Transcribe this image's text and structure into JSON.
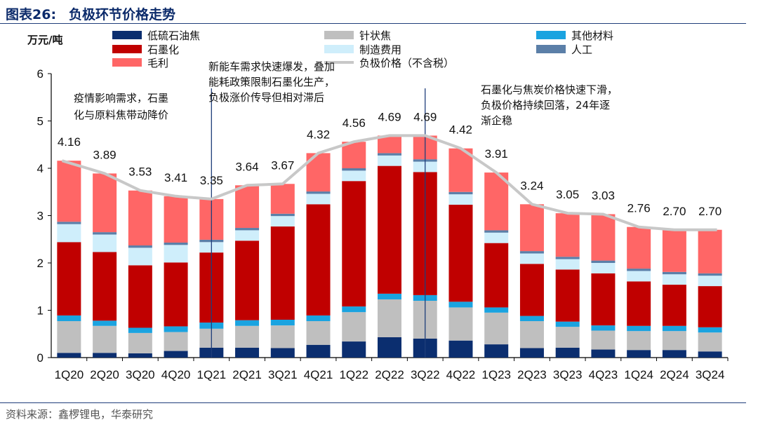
{
  "figure": {
    "label": "图表26:",
    "title": "负极环节价格走势",
    "source": "资料来源：鑫椤锂电，华泰研究"
  },
  "chart_data": {
    "type": "bar",
    "stacked": true,
    "title": "负极环节价格走势",
    "ylabel": "万元/吨",
    "ylim": [
      0,
      6
    ],
    "yticks": [
      0,
      1,
      2,
      3,
      4,
      5,
      6
    ],
    "categories": [
      "1Q20",
      "2Q20",
      "3Q20",
      "4Q20",
      "1Q21",
      "2Q21",
      "3Q21",
      "4Q21",
      "1Q22",
      "2Q22",
      "3Q22",
      "4Q22",
      "1Q23",
      "2Q23",
      "3Q23",
      "4Q23",
      "1Q24",
      "2Q24",
      "3Q24"
    ],
    "series": [
      {
        "name": "低硫石油焦",
        "color": "#0b2e6f",
        "values": [
          0.1,
          0.1,
          0.09,
          0.14,
          0.21,
          0.21,
          0.2,
          0.27,
          0.34,
          0.43,
          0.4,
          0.36,
          0.28,
          0.2,
          0.21,
          0.17,
          0.16,
          0.16,
          0.13
        ]
      },
      {
        "name": "针状焦",
        "color": "#bfbfbf",
        "values": [
          0.67,
          0.57,
          0.43,
          0.4,
          0.4,
          0.46,
          0.48,
          0.5,
          0.62,
          0.8,
          0.8,
          0.7,
          0.67,
          0.57,
          0.44,
          0.4,
          0.4,
          0.4,
          0.4
        ]
      },
      {
        "name": "其他材料",
        "color": "#1aa3e0",
        "values": [
          0.12,
          0.11,
          0.11,
          0.12,
          0.13,
          0.12,
          0.12,
          0.12,
          0.12,
          0.12,
          0.12,
          0.12,
          0.11,
          0.11,
          0.11,
          0.11,
          0.11,
          0.11,
          0.11
        ]
      },
      {
        "name": "石墨化",
        "color": "#c00000",
        "values": [
          1.55,
          1.45,
          1.32,
          1.35,
          1.48,
          1.68,
          1.97,
          2.35,
          2.65,
          2.7,
          2.6,
          2.05,
          1.36,
          1.1,
          1.1,
          1.1,
          0.94,
          0.87,
          0.87
        ]
      },
      {
        "name": "制造费用",
        "color": "#cfeefb",
        "values": [
          0.38,
          0.37,
          0.37,
          0.37,
          0.22,
          0.22,
          0.22,
          0.22,
          0.22,
          0.22,
          0.22,
          0.22,
          0.22,
          0.22,
          0.22,
          0.22,
          0.22,
          0.22,
          0.22
        ]
      },
      {
        "name": "人工",
        "color": "#5b7fa8",
        "values": [
          0.05,
          0.05,
          0.05,
          0.05,
          0.05,
          0.05,
          0.05,
          0.05,
          0.05,
          0.05,
          0.05,
          0.05,
          0.05,
          0.05,
          0.05,
          0.05,
          0.05,
          0.05,
          0.05
        ]
      },
      {
        "name": "毛利",
        "color": "#ff6666",
        "values": [
          1.29,
          1.24,
          1.16,
          0.98,
          0.86,
          0.9,
          0.63,
          0.81,
          0.56,
          0.37,
          0.5,
          0.92,
          1.22,
          0.99,
          0.92,
          0.98,
          0.88,
          0.89,
          0.92
        ]
      }
    ],
    "line": {
      "name": "负极价格（不含税）",
      "color": "#c8c8c8",
      "values": [
        4.16,
        3.89,
        3.53,
        3.41,
        3.35,
        3.64,
        3.67,
        4.32,
        4.56,
        4.69,
        4.69,
        4.42,
        3.91,
        3.24,
        3.05,
        3.03,
        2.76,
        2.7,
        2.7
      ],
      "labels": [
        "4.16",
        "3.89",
        "3.53",
        "3.41",
        "3.35",
        "3.64",
        "3.67",
        "4.32",
        "4.56",
        "4.69",
        "4.69",
        "4.42",
        "3.91",
        "3.24",
        "3.05",
        "3.03",
        "2.76",
        "2.70",
        "2.70"
      ]
    },
    "markers_after": [
      "1Q21",
      "3Q22"
    ],
    "legend_placement": "top",
    "grid": false,
    "annotations": [
      {
        "lines": [
          "疫情影响需求，石墨",
          "化与原料焦带动降价"
        ]
      },
      {
        "lines": [
          "新能车需求快速爆发，叠加",
          "能耗政策限制石墨化生产，",
          "负极涨价传导但相对滞后"
        ]
      },
      {
        "lines": [
          "石墨化与焦炭价格快速下滑，",
          "负极价格持续回落，24年逐",
          "渐企稳"
        ]
      }
    ]
  }
}
